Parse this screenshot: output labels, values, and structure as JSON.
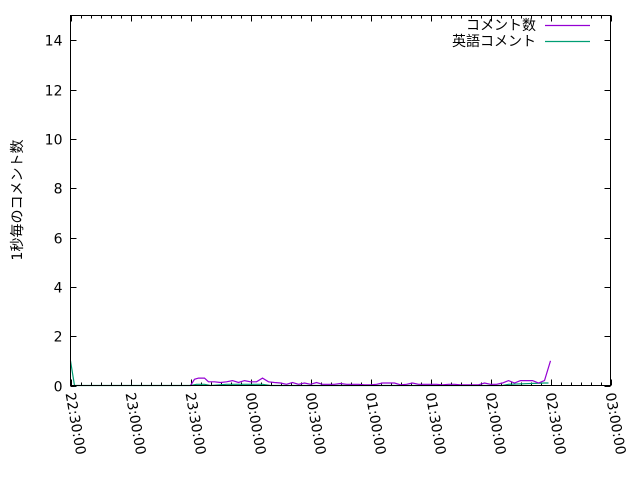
{
  "chart_data": {
    "type": "line",
    "title": "",
    "xlabel": "",
    "ylabel": "1秒毎のコメント数",
    "xlim": [
      "22:30:00",
      "03:00:00"
    ],
    "ylim": [
      0,
      15
    ],
    "x_ticks": [
      "22:30:00",
      "23:00:00",
      "23:30:00",
      "00:00:00",
      "00:30:00",
      "01:00:00",
      "01:30:00",
      "02:00:00",
      "02:30:00",
      "03:00:00"
    ],
    "y_ticks": [
      0,
      2,
      4,
      6,
      8,
      10,
      12,
      14
    ],
    "grid": false,
    "legend_position": "top-right",
    "series": [
      {
        "name": "コメント数",
        "color": "#9400d3",
        "points": [
          [
            "23:30",
            0
          ],
          [
            "23:32",
            0.25
          ],
          [
            "23:34",
            0.3
          ],
          [
            "23:37",
            0.3
          ],
          [
            "23:39",
            0.15
          ],
          [
            "23:42",
            0.15
          ],
          [
            "23:45",
            0.12
          ],
          [
            "23:48",
            0.15
          ],
          [
            "23:51",
            0.2
          ],
          [
            "23:54",
            0.12
          ],
          [
            "23:57",
            0.2
          ],
          [
            "00:00",
            0.15
          ],
          [
            "00:03",
            0.15
          ],
          [
            "00:06",
            0.3
          ],
          [
            "00:09",
            0.15
          ],
          [
            "00:12",
            0.12
          ],
          [
            "00:15",
            0.1
          ],
          [
            "00:18",
            0.05
          ],
          [
            "00:21",
            0.12
          ],
          [
            "00:24",
            0.05
          ],
          [
            "00:27",
            0.1
          ],
          [
            "00:30",
            0.05
          ],
          [
            "00:33",
            0.12
          ],
          [
            "00:36",
            0.05
          ],
          [
            "00:39",
            0.05
          ],
          [
            "00:42",
            0.05
          ],
          [
            "00:45",
            0.08
          ],
          [
            "00:48",
            0.05
          ],
          [
            "00:51",
            0.05
          ],
          [
            "00:54",
            0.05
          ],
          [
            "00:57",
            0.03
          ],
          [
            "01:00",
            0.03
          ],
          [
            "01:03",
            0.05
          ],
          [
            "01:06",
            0.1
          ],
          [
            "01:09",
            0.1
          ],
          [
            "01:12",
            0.1
          ],
          [
            "01:15",
            0.03
          ],
          [
            "01:18",
            0.05
          ],
          [
            "01:21",
            0.1
          ],
          [
            "01:24",
            0.05
          ],
          [
            "01:27",
            0.05
          ],
          [
            "01:30",
            0.05
          ],
          [
            "01:33",
            0.05
          ],
          [
            "01:36",
            0.03
          ],
          [
            "01:39",
            0.05
          ],
          [
            "01:42",
            0.05
          ],
          [
            "01:45",
            0.03
          ],
          [
            "01:48",
            0.03
          ],
          [
            "01:51",
            0.03
          ],
          [
            "01:54",
            0.03
          ],
          [
            "01:57",
            0.1
          ],
          [
            "02:00",
            0.05
          ],
          [
            "02:03",
            0.05
          ],
          [
            "02:06",
            0.1
          ],
          [
            "02:09",
            0.2
          ],
          [
            "02:12",
            0.1
          ],
          [
            "02:15",
            0.2
          ],
          [
            "02:18",
            0.2
          ],
          [
            "02:21",
            0.2
          ],
          [
            "02:24",
            0.1
          ],
          [
            "02:27",
            0.2
          ],
          [
            "02:30",
            1.0
          ]
        ]
      },
      {
        "name": "英語コメント",
        "color": "#009e73",
        "points": [
          [
            "22:30",
            1.0
          ],
          [
            "22:32",
            0
          ],
          [
            "23:30",
            0
          ],
          [
            "23:33",
            0.05
          ],
          [
            "23:37",
            0.05
          ],
          [
            "23:40",
            0
          ],
          [
            "23:48",
            0.05
          ],
          [
            "00:06",
            0.05
          ],
          [
            "00:10",
            0
          ],
          [
            "01:30",
            0
          ],
          [
            "02:06",
            0
          ],
          [
            "02:09",
            0.05
          ],
          [
            "02:27",
            0.1
          ],
          [
            "02:29",
            0.1
          ]
        ]
      }
    ]
  }
}
